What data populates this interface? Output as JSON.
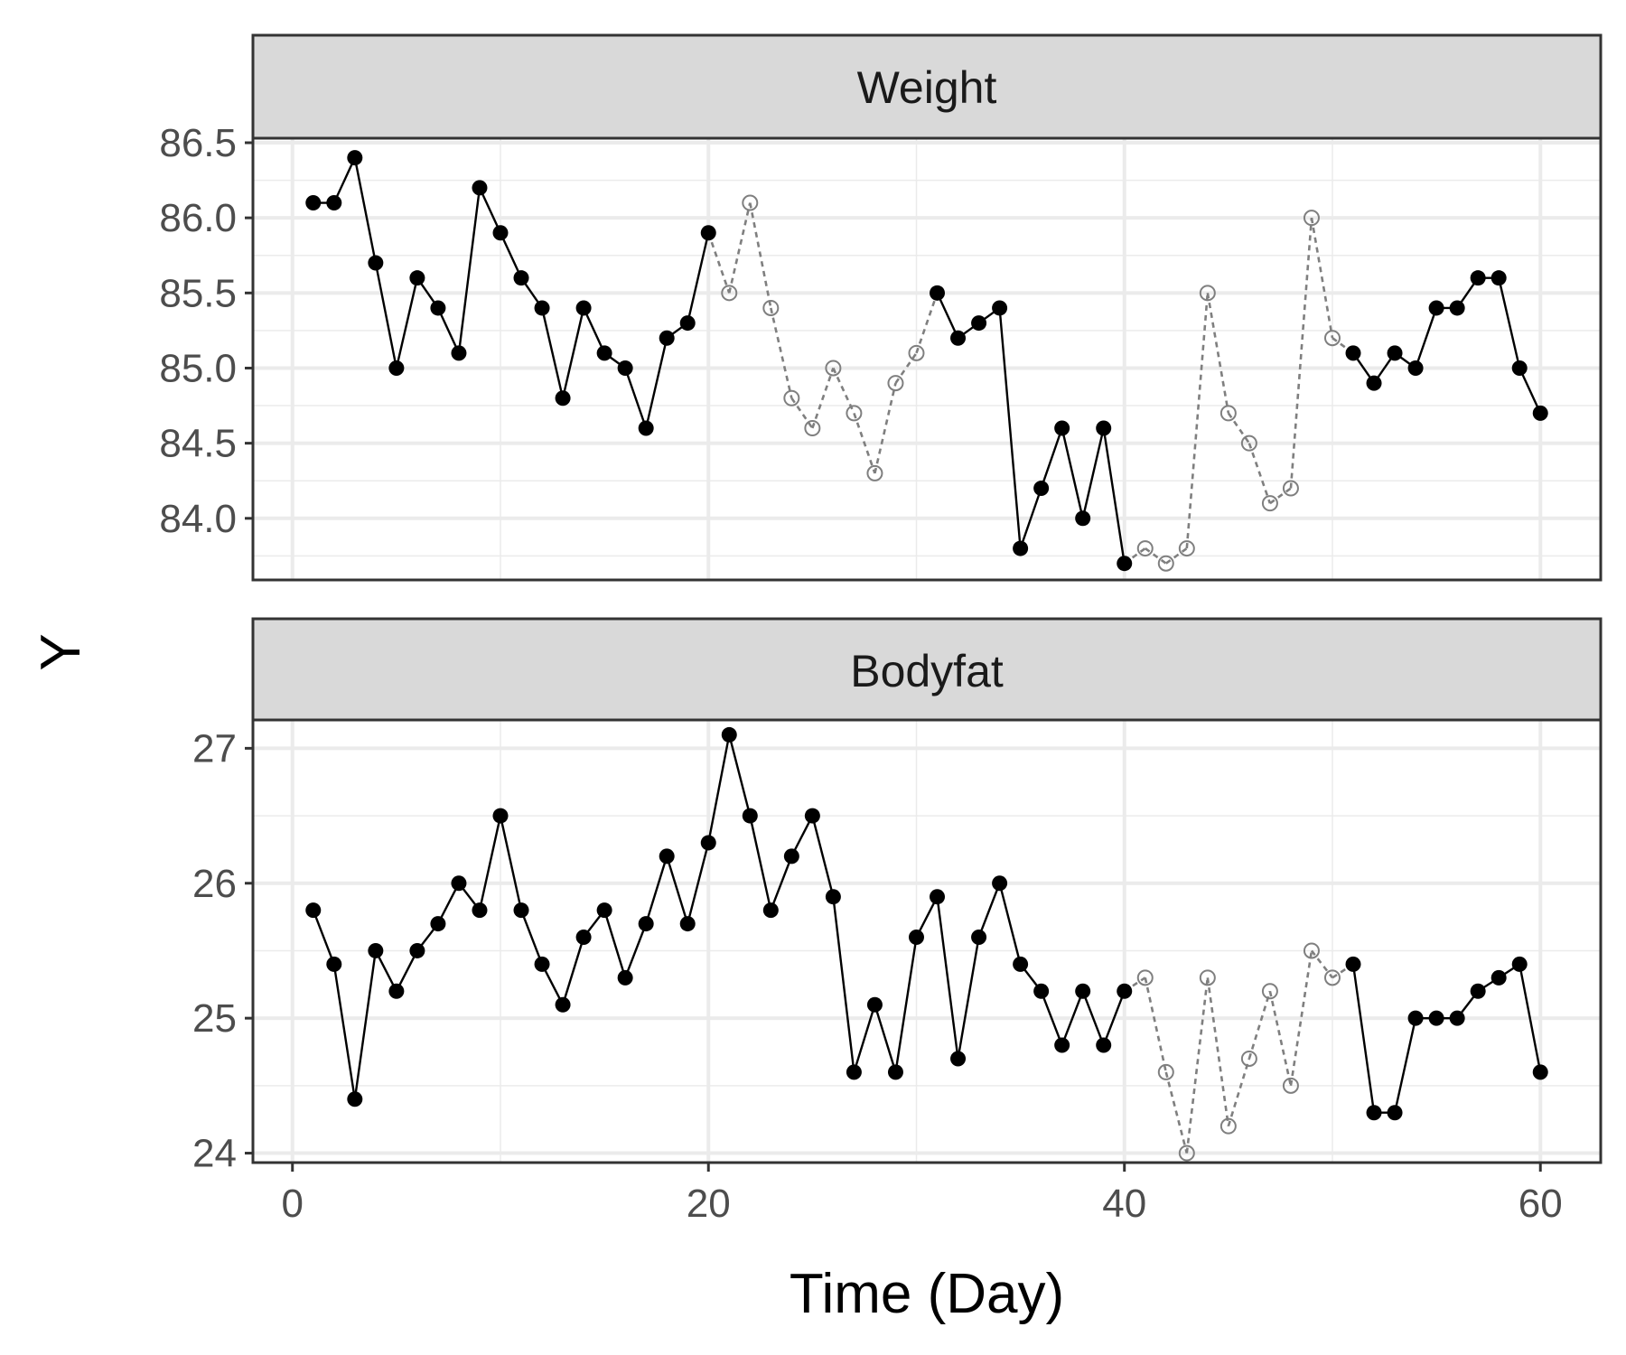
{
  "chart_data": {
    "type": "line",
    "xlabel": "Time (Day)",
    "ylabel": "Y",
    "x_ticks": [
      0,
      20,
      40,
      60
    ],
    "xlim": [
      -1.9,
      62.9
    ],
    "line_color": "#000000",
    "imputed_color": "#7f7f7f",
    "panels": [
      {
        "name": "Weight",
        "ylim": [
          83.59,
          86.53
        ],
        "y_ticks": [
          84.0,
          84.5,
          85.0,
          85.5,
          86.0,
          86.5
        ],
        "y_tick_labels": [
          "84.0",
          "84.5",
          "85.0",
          "85.5",
          "86.0",
          "86.5"
        ],
        "x": [
          1,
          2,
          3,
          4,
          5,
          6,
          7,
          8,
          9,
          10,
          11,
          12,
          13,
          14,
          15,
          16,
          17,
          18,
          19,
          20,
          21,
          22,
          23,
          24,
          25,
          26,
          27,
          28,
          29,
          30,
          31,
          32,
          33,
          34,
          35,
          36,
          37,
          38,
          39,
          40,
          41,
          42,
          43,
          44,
          45,
          46,
          47,
          48,
          49,
          50,
          51,
          52,
          53,
          54,
          55,
          56,
          57,
          58,
          59,
          60
        ],
        "y": [
          86.1,
          86.1,
          86.4,
          85.7,
          85.0,
          85.6,
          85.4,
          85.1,
          86.2,
          85.9,
          85.6,
          85.4,
          84.8,
          85.4,
          85.1,
          85.0,
          84.6,
          85.2,
          85.3,
          85.9,
          85.5,
          86.1,
          85.4,
          84.8,
          84.6,
          85.0,
          84.7,
          84.3,
          84.9,
          85.1,
          85.5,
          85.2,
          85.3,
          85.4,
          83.8,
          84.2,
          84.6,
          84.0,
          84.6,
          83.7,
          83.8,
          83.7,
          83.8,
          85.5,
          84.7,
          84.5,
          84.1,
          84.2,
          86.0,
          85.2,
          85.1,
          84.9,
          85.1,
          85.0,
          85.4,
          85.4,
          85.6,
          85.6,
          85.0,
          84.7
        ],
        "imputed_ranges": [
          [
            21,
            30
          ],
          [
            41,
            50
          ]
        ]
      },
      {
        "name": "Bodyfat",
        "ylim": [
          23.93,
          27.21
        ],
        "y_ticks": [
          24,
          25,
          26,
          27
        ],
        "y_tick_labels": [
          "24",
          "25",
          "26",
          "27"
        ],
        "x": [
          1,
          2,
          3,
          4,
          5,
          6,
          7,
          8,
          9,
          10,
          11,
          12,
          13,
          14,
          15,
          16,
          17,
          18,
          19,
          20,
          21,
          22,
          23,
          24,
          25,
          26,
          27,
          28,
          29,
          30,
          31,
          32,
          33,
          34,
          35,
          36,
          37,
          38,
          39,
          40,
          41,
          42,
          43,
          44,
          45,
          46,
          47,
          48,
          49,
          50,
          51,
          52,
          53,
          54,
          55,
          56,
          57,
          58,
          59,
          60
        ],
        "y": [
          25.8,
          25.4,
          24.4,
          25.5,
          25.2,
          25.5,
          25.7,
          26.0,
          25.8,
          26.5,
          25.8,
          25.4,
          25.1,
          25.6,
          25.8,
          25.3,
          25.7,
          26.2,
          25.7,
          26.3,
          27.1,
          26.5,
          25.8,
          26.2,
          26.5,
          25.9,
          24.6,
          25.1,
          24.6,
          25.6,
          25.9,
          24.7,
          25.6,
          26.0,
          25.4,
          25.2,
          24.8,
          25.2,
          24.8,
          25.2,
          25.3,
          24.6,
          24.0,
          25.3,
          24.2,
          24.7,
          25.2,
          24.5,
          25.5,
          25.3,
          25.4,
          24.3,
          24.3,
          25.0,
          25.0,
          25.0,
          25.2,
          25.3,
          25.4,
          24.6
        ],
        "imputed_ranges": [
          [
            41,
            50
          ]
        ]
      }
    ]
  }
}
